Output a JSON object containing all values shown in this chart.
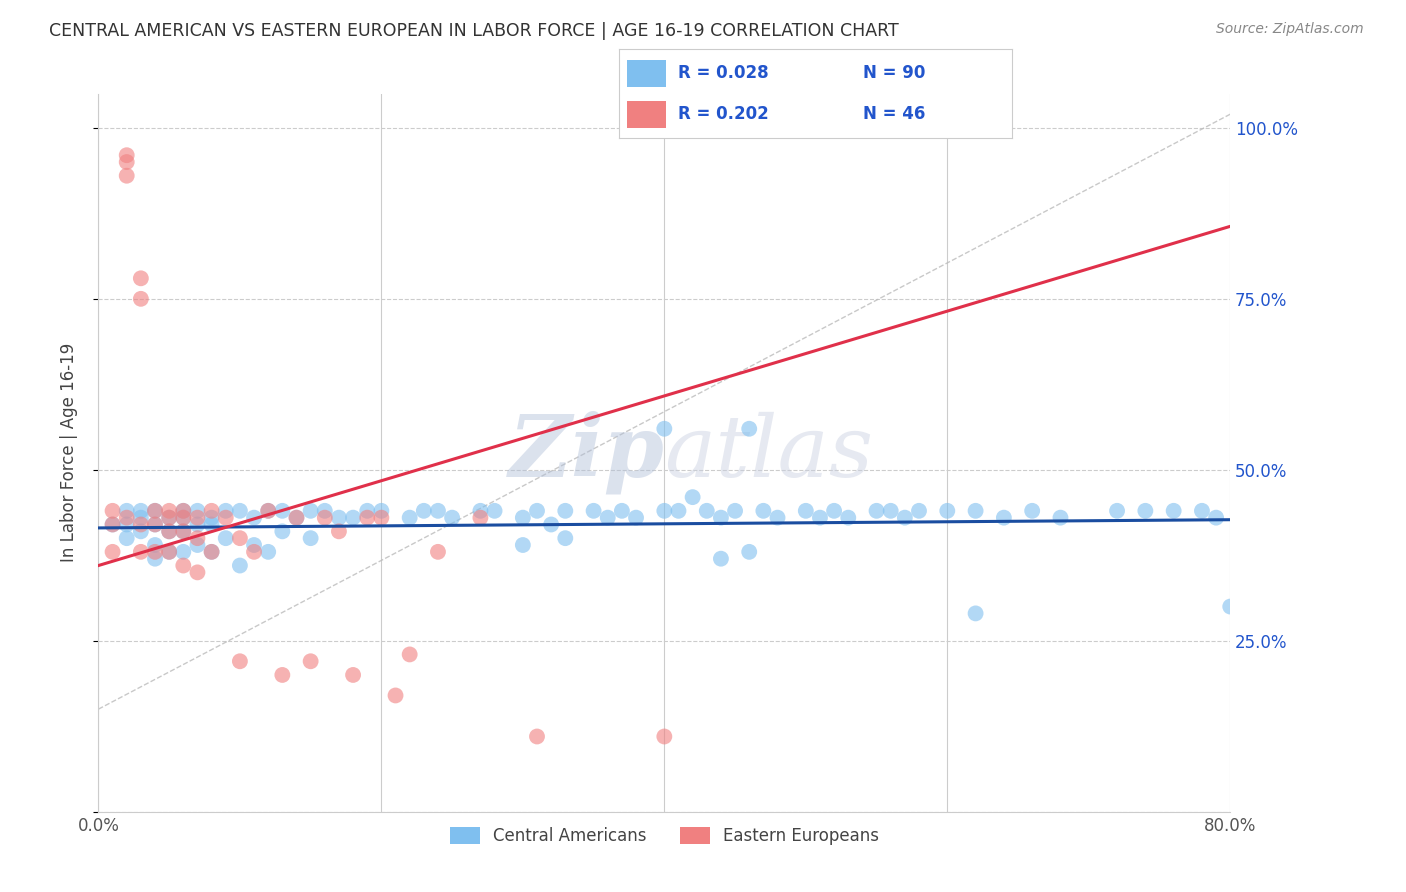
{
  "title": "CENTRAL AMERICAN VS EASTERN EUROPEAN IN LABOR FORCE | AGE 16-19 CORRELATION CHART",
  "source": "Source: ZipAtlas.com",
  "ylabel": "In Labor Force | Age 16-19",
  "xlim": [
    0.0,
    0.8
  ],
  "ylim": [
    0.0,
    1.05
  ],
  "yticks": [
    0.0,
    0.25,
    0.5,
    0.75,
    1.0
  ],
  "ytick_labels": [
    "",
    "25.0%",
    "50.0%",
    "75.0%",
    "100.0%"
  ],
  "xtick_labels": [
    "0.0%",
    "80.0%"
  ],
  "xtick_positions": [
    0.0,
    0.8
  ],
  "blue_color": "#7fbfef",
  "pink_color": "#f08080",
  "blue_line_color": "#1a4da0",
  "pink_line_color": "#e0304a",
  "legend_label_blue": "Central Americans",
  "legend_label_pink": "Eastern Europeans",
  "watermark": "ZipAtlas",
  "blue_scatter_x": [
    0.01,
    0.02,
    0.02,
    0.02,
    0.03,
    0.03,
    0.03,
    0.04,
    0.04,
    0.04,
    0.04,
    0.05,
    0.05,
    0.05,
    0.06,
    0.06,
    0.06,
    0.06,
    0.07,
    0.07,
    0.07,
    0.08,
    0.08,
    0.08,
    0.09,
    0.09,
    0.1,
    0.1,
    0.11,
    0.11,
    0.12,
    0.12,
    0.13,
    0.13,
    0.14,
    0.15,
    0.15,
    0.16,
    0.17,
    0.18,
    0.19,
    0.2,
    0.22,
    0.23,
    0.24,
    0.25,
    0.27,
    0.28,
    0.3,
    0.3,
    0.31,
    0.32,
    0.33,
    0.33,
    0.35,
    0.36,
    0.37,
    0.38,
    0.4,
    0.4,
    0.41,
    0.42,
    0.43,
    0.44,
    0.45,
    0.46,
    0.47,
    0.48,
    0.5,
    0.51,
    0.52,
    0.53,
    0.55,
    0.56,
    0.57,
    0.58,
    0.6,
    0.62,
    0.64,
    0.66,
    0.68,
    0.72,
    0.74,
    0.76,
    0.78,
    0.79,
    0.62,
    0.44,
    0.46,
    0.8
  ],
  "blue_scatter_y": [
    0.42,
    0.44,
    0.42,
    0.4,
    0.43,
    0.44,
    0.41,
    0.44,
    0.42,
    0.39,
    0.37,
    0.43,
    0.41,
    0.38,
    0.44,
    0.43,
    0.41,
    0.38,
    0.44,
    0.42,
    0.39,
    0.43,
    0.42,
    0.38,
    0.44,
    0.4,
    0.44,
    0.36,
    0.43,
    0.39,
    0.44,
    0.38,
    0.44,
    0.41,
    0.43,
    0.44,
    0.4,
    0.44,
    0.43,
    0.43,
    0.44,
    0.44,
    0.43,
    0.44,
    0.44,
    0.43,
    0.44,
    0.44,
    0.43,
    0.39,
    0.44,
    0.42,
    0.44,
    0.4,
    0.44,
    0.43,
    0.44,
    0.43,
    0.44,
    0.56,
    0.44,
    0.46,
    0.44,
    0.43,
    0.44,
    0.56,
    0.44,
    0.43,
    0.44,
    0.43,
    0.44,
    0.43,
    0.44,
    0.44,
    0.43,
    0.44,
    0.44,
    0.44,
    0.43,
    0.44,
    0.43,
    0.44,
    0.44,
    0.44,
    0.44,
    0.43,
    0.29,
    0.37,
    0.38,
    0.3
  ],
  "pink_scatter_x": [
    0.01,
    0.01,
    0.01,
    0.02,
    0.02,
    0.02,
    0.02,
    0.03,
    0.03,
    0.03,
    0.03,
    0.04,
    0.04,
    0.04,
    0.05,
    0.05,
    0.05,
    0.05,
    0.06,
    0.06,
    0.06,
    0.06,
    0.07,
    0.07,
    0.07,
    0.08,
    0.08,
    0.09,
    0.1,
    0.1,
    0.11,
    0.12,
    0.13,
    0.14,
    0.15,
    0.16,
    0.17,
    0.18,
    0.19,
    0.2,
    0.21,
    0.22,
    0.24,
    0.27,
    0.31,
    0.4
  ],
  "pink_scatter_y": [
    0.44,
    0.42,
    0.38,
    0.96,
    0.95,
    0.93,
    0.43,
    0.78,
    0.75,
    0.42,
    0.38,
    0.44,
    0.42,
    0.38,
    0.44,
    0.43,
    0.41,
    0.38,
    0.44,
    0.43,
    0.41,
    0.36,
    0.43,
    0.4,
    0.35,
    0.44,
    0.38,
    0.43,
    0.4,
    0.22,
    0.38,
    0.44,
    0.2,
    0.43,
    0.22,
    0.43,
    0.41,
    0.2,
    0.43,
    0.43,
    0.17,
    0.23,
    0.38,
    0.43,
    0.11,
    0.11
  ],
  "background_color": "#ffffff",
  "grid_color": "#cccccc",
  "blue_trend_slope": 0.015,
  "blue_trend_intercept": 0.415,
  "pink_trend_slope": 0.62,
  "pink_trend_intercept": 0.36
}
